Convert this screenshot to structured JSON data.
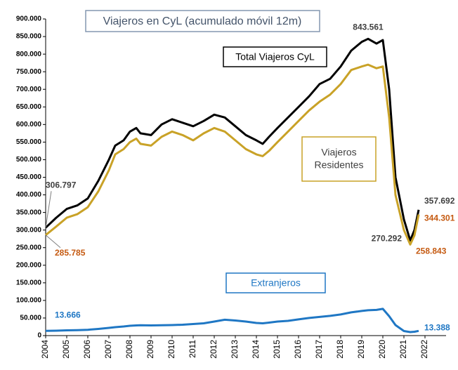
{
  "chart_data": {
    "type": "line",
    "title": "Viajeros en CyL (acumulado móvil 12m)",
    "x": [
      2004,
      2004.5,
      2005,
      2005.5,
      2006,
      2006.5,
      2007,
      2007.3,
      2007.7,
      2008,
      2008.3,
      2008.5,
      2009,
      2009.5,
      2010,
      2010.5,
      2011,
      2011.5,
      2012,
      2012.5,
      2013,
      2013.5,
      2014,
      2014.3,
      2014.6,
      2015,
      2015.5,
      2016,
      2016.5,
      2017,
      2017.5,
      2018,
      2018.5,
      2019,
      2019.3,
      2019.7,
      2020,
      2020.3,
      2020.6,
      2021,
      2021.3,
      2021.5,
      2021.7
    ],
    "series": [
      {
        "name": "Total Viajeros CyL",
        "color": "#000000",
        "label_color": "#404040",
        "values": [
          306797,
          335000,
          360000,
          370000,
          390000,
          440000,
          500000,
          540000,
          555000,
          580000,
          590000,
          575000,
          570000,
          600000,
          615000,
          605000,
          595000,
          610000,
          628000,
          620000,
          595000,
          570000,
          555000,
          545000,
          565000,
          590000,
          620000,
          650000,
          680000,
          715000,
          730000,
          765000,
          810000,
          835000,
          843561,
          830000,
          840000,
          700000,
          450000,
          330000,
          270292,
          300000,
          357692
        ],
        "value_labels": [
          "306.797",
          null,
          null,
          null,
          null,
          null,
          null,
          null,
          null,
          null,
          null,
          null,
          null,
          null,
          null,
          null,
          null,
          null,
          null,
          null,
          null,
          null,
          null,
          null,
          null,
          null,
          null,
          null,
          null,
          null,
          null,
          null,
          null,
          null,
          "843.561",
          null,
          null,
          null,
          null,
          null,
          "270.292",
          null,
          "357.692"
        ]
      },
      {
        "name": "Viajeros Residentes",
        "color": "#c9a227",
        "label_color": "#c55a11",
        "values": [
          285785,
          310000,
          335000,
          345000,
          365000,
          410000,
          470000,
          515000,
          530000,
          550000,
          560000,
          545000,
          540000,
          565000,
          580000,
          570000,
          555000,
          575000,
          590000,
          580000,
          555000,
          530000,
          515000,
          510000,
          525000,
          550000,
          580000,
          610000,
          640000,
          665000,
          685000,
          715000,
          755000,
          765000,
          770000,
          760000,
          765000,
          620000,
          400000,
          300000,
          258843,
          285000,
          344301
        ],
        "value_labels": [
          "285.785",
          null,
          null,
          null,
          null,
          null,
          null,
          null,
          null,
          null,
          null,
          null,
          null,
          null,
          null,
          null,
          null,
          null,
          null,
          null,
          null,
          null,
          null,
          null,
          null,
          null,
          null,
          null,
          null,
          null,
          null,
          null,
          null,
          null,
          null,
          null,
          null,
          null,
          null,
          null,
          "258.843",
          null,
          "344.301"
        ]
      },
      {
        "name": "Extranjeros",
        "color": "#1f77c4",
        "label_color": "#1f77c4",
        "values": [
          13666,
          14000,
          15000,
          15500,
          16500,
          19000,
          22000,
          24000,
          26000,
          28000,
          29000,
          29500,
          29000,
          29500,
          30000,
          31000,
          33000,
          35000,
          40000,
          45000,
          43000,
          40000,
          36000,
          35000,
          37000,
          40000,
          42000,
          46000,
          50000,
          53000,
          56000,
          60000,
          66000,
          70000,
          72000,
          73000,
          76000,
          55000,
          30000,
          13000,
          10000,
          11000,
          13388
        ],
        "value_labels": [
          "13.666",
          null,
          null,
          null,
          null,
          null,
          null,
          null,
          null,
          null,
          null,
          null,
          null,
          null,
          null,
          null,
          null,
          null,
          null,
          null,
          null,
          null,
          null,
          null,
          null,
          null,
          null,
          null,
          null,
          null,
          null,
          null,
          null,
          null,
          null,
          null,
          null,
          null,
          null,
          null,
          null,
          null,
          "13.388"
        ]
      }
    ],
    "xlim": [
      2004,
      2023
    ],
    "xticks": [
      2004,
      2005,
      2006,
      2007,
      2008,
      2009,
      2010,
      2011,
      2012,
      2013,
      2014,
      2015,
      2016,
      2017,
      2018,
      2019,
      2020,
      2021,
      2022
    ],
    "ylim": [
      0,
      900000
    ],
    "yticks": [
      0,
      {
        "value": 50000,
        "label": "50.000"
      },
      {
        "value": 100000,
        "label": "100.000"
      },
      {
        "value": 150000,
        "label": "150.000"
      },
      {
        "value": 200000,
        "label": "200.000"
      },
      {
        "value": 250000,
        "label": "250.000"
      },
      {
        "value": 300000,
        "label": "300.000"
      },
      {
        "value": 350000,
        "label": "350.000"
      },
      {
        "value": 400000,
        "label": "400.000"
      },
      {
        "value": 450000,
        "label": "450.000"
      },
      {
        "value": 500000,
        "label": "500.000"
      },
      {
        "value": 550000,
        "label": "550.000"
      },
      {
        "value": 600000,
        "label": "600.000"
      },
      {
        "value": 650000,
        "label": "650.000"
      },
      {
        "value": 700000,
        "label": "700.000"
      },
      {
        "value": 750000,
        "label": "750.000"
      },
      {
        "value": 800000,
        "label": "800.000"
      },
      {
        "value": 850000,
        "label": "850.000"
      },
      {
        "value": 900000,
        "label": "900.000"
      }
    ],
    "grid": false
  }
}
